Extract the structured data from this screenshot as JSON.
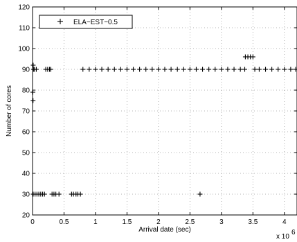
{
  "chart_data": {
    "type": "scatter",
    "title": "",
    "xlabel": "Arrival date (sec)",
    "ylabel": "Number of cores",
    "x_exponent_label": "x 10",
    "x_exponent_power": "6",
    "x_scale": 1000000,
    "xlim": [
      0,
      4200000
    ],
    "ylim": [
      20,
      120
    ],
    "x_ticks": [
      0,
      0.5,
      1,
      1.5,
      2,
      2.5,
      3,
      3.5,
      4
    ],
    "x_tick_labels": [
      "0",
      "0.5",
      "1",
      "1.5",
      "2",
      "2.5",
      "3",
      "3.5",
      "4"
    ],
    "y_ticks": [
      20,
      30,
      40,
      50,
      60,
      70,
      80,
      90,
      100,
      110,
      120
    ],
    "y_tick_labels": [
      "20",
      "30",
      "40",
      "50",
      "60",
      "70",
      "80",
      "90",
      "100",
      "110",
      "120"
    ],
    "grid": true,
    "legend_position": "top-left",
    "marker": "+",
    "series": [
      {
        "name": "ELA−EST−0.5",
        "color": "#000000",
        "points": [
          {
            "x": 10000,
            "y": 92
          },
          {
            "x": 15000,
            "y": 90
          },
          {
            "x": 30000,
            "y": 90
          },
          {
            "x": 60000,
            "y": 90
          },
          {
            "x": 5000,
            "y": 79
          },
          {
            "x": 8000,
            "y": 75
          },
          {
            "x": 210000,
            "y": 90
          },
          {
            "x": 240000,
            "y": 90
          },
          {
            "x": 270000,
            "y": 90
          },
          {
            "x": 290000,
            "y": 90
          },
          {
            "x": 800000,
            "y": 90
          },
          {
            "x": 900000,
            "y": 90
          },
          {
            "x": 1000000,
            "y": 90
          },
          {
            "x": 1100000,
            "y": 90
          },
          {
            "x": 1200000,
            "y": 90
          },
          {
            "x": 1300000,
            "y": 90
          },
          {
            "x": 1400000,
            "y": 90
          },
          {
            "x": 1500000,
            "y": 90
          },
          {
            "x": 1600000,
            "y": 90
          },
          {
            "x": 1700000,
            "y": 90
          },
          {
            "x": 1800000,
            "y": 90
          },
          {
            "x": 1900000,
            "y": 90
          },
          {
            "x": 2000000,
            "y": 90
          },
          {
            "x": 2100000,
            "y": 90
          },
          {
            "x": 2200000,
            "y": 90
          },
          {
            "x": 2300000,
            "y": 90
          },
          {
            "x": 2400000,
            "y": 90
          },
          {
            "x": 2500000,
            "y": 90
          },
          {
            "x": 2600000,
            "y": 90
          },
          {
            "x": 2700000,
            "y": 90
          },
          {
            "x": 2800000,
            "y": 90
          },
          {
            "x": 2900000,
            "y": 90
          },
          {
            "x": 3000000,
            "y": 90
          },
          {
            "x": 3100000,
            "y": 90
          },
          {
            "x": 3200000,
            "y": 90
          },
          {
            "x": 3300000,
            "y": 90
          },
          {
            "x": 3370000,
            "y": 90
          },
          {
            "x": 3380000,
            "y": 96
          },
          {
            "x": 3420000,
            "y": 96
          },
          {
            "x": 3460000,
            "y": 96
          },
          {
            "x": 3500000,
            "y": 96
          },
          {
            "x": 3530000,
            "y": 90
          },
          {
            "x": 3600000,
            "y": 90
          },
          {
            "x": 3700000,
            "y": 90
          },
          {
            "x": 3800000,
            "y": 90
          },
          {
            "x": 3900000,
            "y": 90
          },
          {
            "x": 4000000,
            "y": 90
          },
          {
            "x": 4100000,
            "y": 90
          },
          {
            "x": 4180000,
            "y": 90
          },
          {
            "x": 10000,
            "y": 30
          },
          {
            "x": 40000,
            "y": 30
          },
          {
            "x": 70000,
            "y": 30
          },
          {
            "x": 100000,
            "y": 30
          },
          {
            "x": 130000,
            "y": 30
          },
          {
            "x": 160000,
            "y": 30
          },
          {
            "x": 190000,
            "y": 30
          },
          {
            "x": 310000,
            "y": 30
          },
          {
            "x": 340000,
            "y": 30
          },
          {
            "x": 370000,
            "y": 30
          },
          {
            "x": 420000,
            "y": 30
          },
          {
            "x": 620000,
            "y": 30
          },
          {
            "x": 650000,
            "y": 30
          },
          {
            "x": 690000,
            "y": 30
          },
          {
            "x": 720000,
            "y": 30
          },
          {
            "x": 760000,
            "y": 30
          },
          {
            "x": 2660000,
            "y": 30
          }
        ]
      }
    ]
  }
}
